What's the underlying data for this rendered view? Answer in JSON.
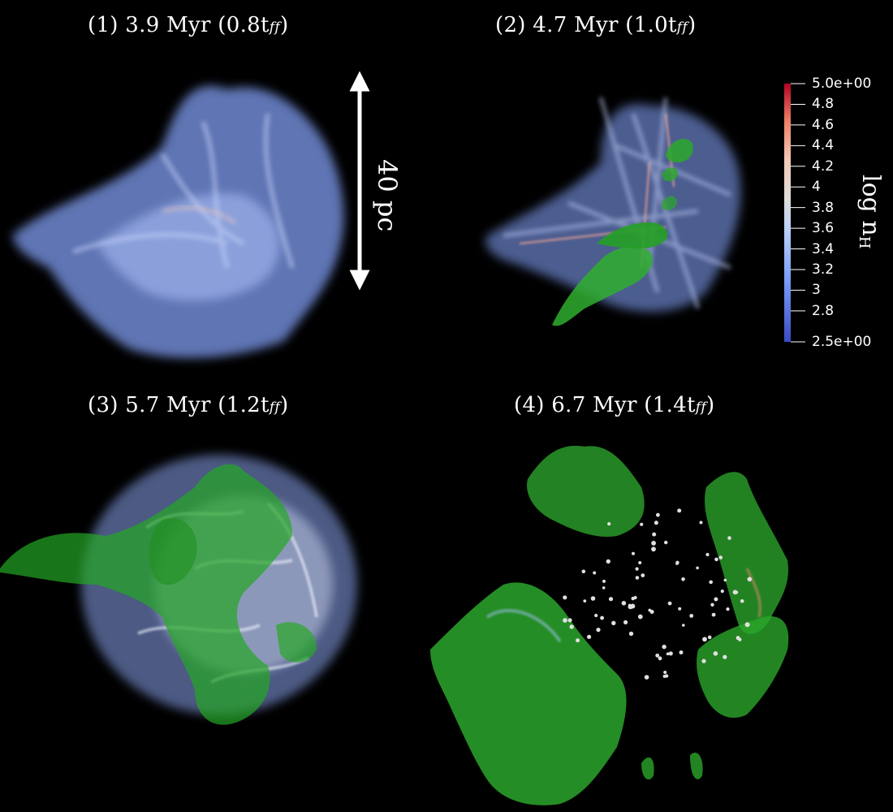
{
  "panels": [
    {
      "title_main": "(1) 3.9 Myr (0.8t",
      "title_sub": "ff",
      "title_end": ")"
    },
    {
      "title_main": "(2) 4.7 Myr (1.0t",
      "title_sub": "ff",
      "title_end": ")"
    },
    {
      "title_main": "(3) 5.7 Myr (1.2t",
      "title_sub": "ff",
      "title_end": ")"
    },
    {
      "title_main": "(4) 6.7 Myr (1.4t",
      "title_sub": "ff",
      "title_end": ")"
    }
  ],
  "scale_bar": {
    "label": "40 pc"
  },
  "colorbar": {
    "title_main": "log n",
    "title_sub": "H",
    "ticks": [
      "5.0e+00",
      "4.8",
      "4.6",
      "4.4",
      "4.2",
      "4",
      "3.8",
      "3.6",
      "3.4",
      "3.2",
      "3",
      "2.8",
      "2.5e+00"
    ],
    "tick_values": [
      5.0,
      4.8,
      4.6,
      4.4,
      4.2,
      4.0,
      3.8,
      3.6,
      3.4,
      3.2,
      3.0,
      2.8,
      2.5
    ],
    "range": [
      2.5,
      5.0
    ],
    "colors": {
      "low": "#3b4cc0",
      "mid": "#dddddd",
      "high": "#b40426"
    }
  },
  "colors": {
    "gas": "#9db4ff",
    "ionized_front": "#22aa22",
    "stars": "#e0e0e0"
  }
}
